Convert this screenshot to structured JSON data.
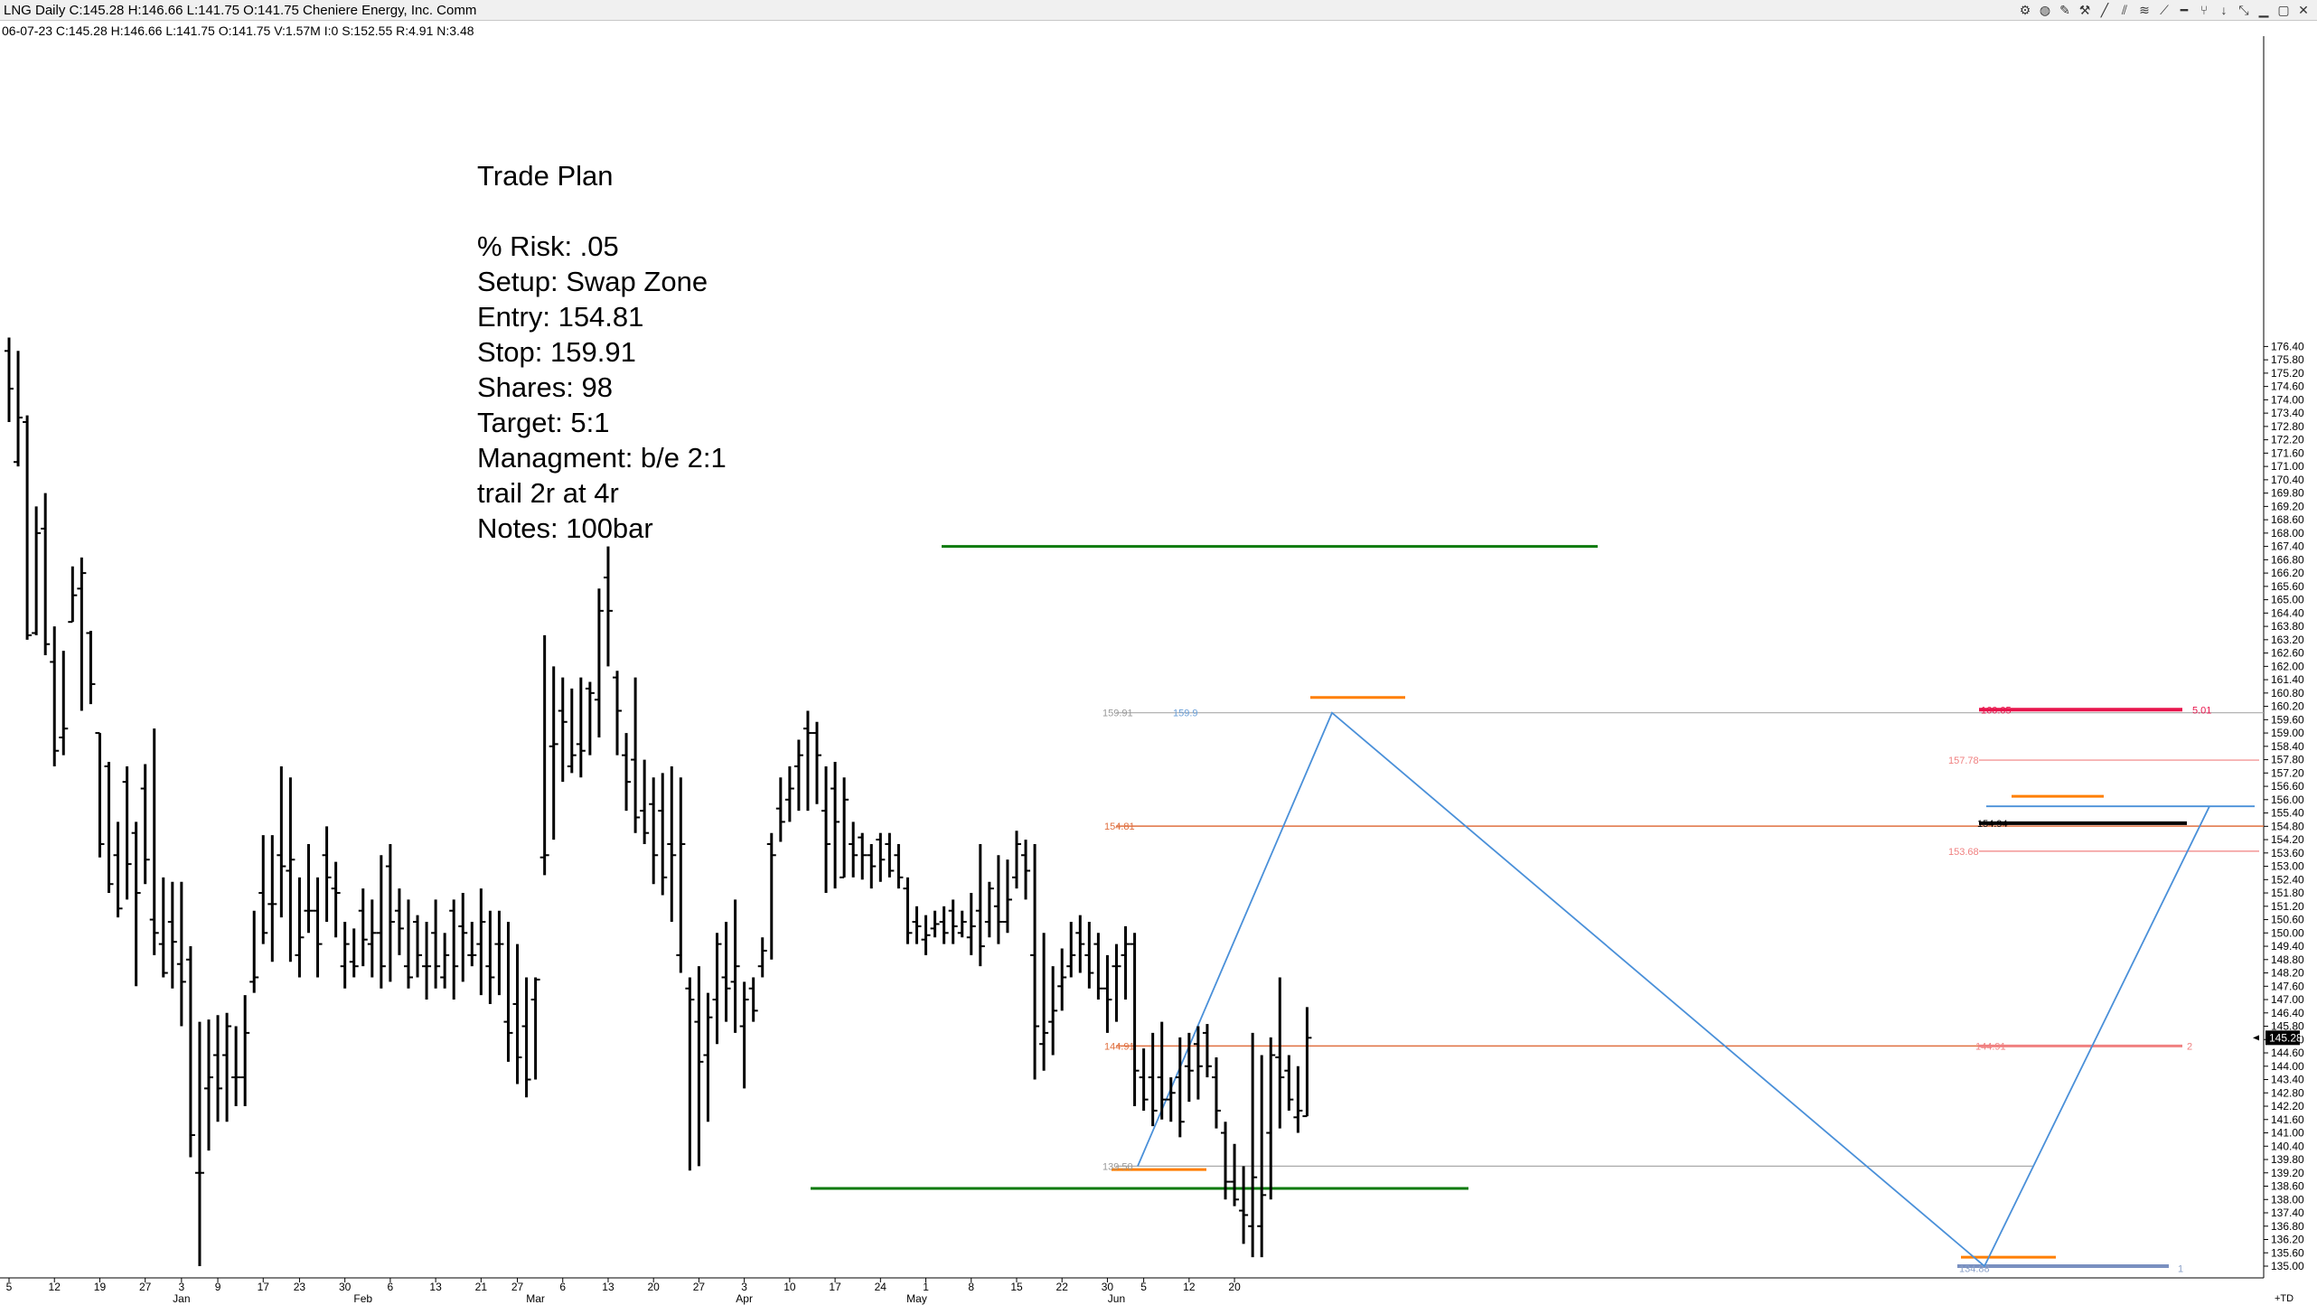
{
  "window": {
    "title": "LNG Daily C:145.28 H:146.66 L:141.75 O:141.75 Cheniere Energy, Inc. Comm",
    "toolbar_icons": [
      "gear-icon",
      "color-icon",
      "pencil-icon",
      "wrench-icon",
      "line-icon",
      "channel-icon",
      "fib-icon",
      "trend-icon",
      "hline-icon",
      "fork-icon",
      "down-arrow-icon",
      "resize-icon",
      "minimize-icon",
      "maximize-icon",
      "close-icon"
    ]
  },
  "quote_line": "06-07-23 C:145.28 H:146.66 L:141.75 O:141.75 V:1.57M I:0 S:152.55 R:4.91 N:3.48",
  "trade_plan": {
    "title": "Trade Plan",
    "lines": [
      "% Risk: .05",
      "Setup: Swap Zone",
      "Entry: 154.81",
      "Stop: 159.91",
      "Shares: 98",
      "Target: 5:1",
      "Managment: b/e 2:1",
      "trail 2r at 4r",
      "Notes: 100bar"
    ]
  },
  "chart_data": {
    "type": "ohlc",
    "symbol": "LNG",
    "interval": "Daily",
    "colors": {
      "bars": "#000000",
      "entry": "#e07040",
      "stop": "#888888",
      "green": "#0a7a0a",
      "orange": "#ff7f00",
      "blue": "#4a90d9",
      "target": "#e8144c",
      "partial": "#f08080"
    },
    "ylim": [
      135,
      176.4
    ],
    "y_ticks": [
      135.0,
      135.6,
      136.2,
      136.8,
      137.4,
      138.0,
      138.6,
      139.2,
      139.8,
      140.4,
      141.0,
      141.6,
      142.2,
      142.8,
      143.4,
      144.0,
      144.6,
      145.2,
      145.8,
      146.4,
      147.0,
      147.6,
      148.2,
      148.8,
      149.4,
      150.0,
      150.6,
      151.2,
      151.8,
      152.4,
      153.0,
      153.6,
      154.2,
      154.8,
      155.4,
      156.0,
      156.6,
      157.2,
      157.8,
      158.4,
      159.0,
      159.6,
      160.2,
      160.8,
      161.4,
      162.0,
      162.6,
      163.2,
      163.8,
      164.4,
      165.0,
      165.6,
      166.2,
      166.8,
      167.4,
      168.0,
      168.6,
      169.2,
      169.8,
      170.4,
      171.0,
      171.6,
      172.2,
      172.8,
      173.4,
      174.0,
      174.6,
      175.2,
      175.8,
      176.4
    ],
    "x_ticks": [
      {
        "label": "5",
        "i": 0
      },
      {
        "label": "12",
        "i": 5
      },
      {
        "label": "19",
        "i": 10
      },
      {
        "label": "27",
        "i": 15
      },
      {
        "label": "3",
        "i": 19
      },
      {
        "label": "9",
        "i": 23
      },
      {
        "label": "17",
        "i": 28
      },
      {
        "label": "23",
        "i": 32
      },
      {
        "label": "30",
        "i": 37
      },
      {
        "label": "6",
        "i": 42
      },
      {
        "label": "13",
        "i": 47
      },
      {
        "label": "21",
        "i": 52
      },
      {
        "label": "27",
        "i": 56
      },
      {
        "label": "6",
        "i": 61
      },
      {
        "label": "13",
        "i": 66
      },
      {
        "label": "20",
        "i": 71
      },
      {
        "label": "27",
        "i": 76
      },
      {
        "label": "3",
        "i": 81
      },
      {
        "label": "10",
        "i": 86
      },
      {
        "label": "17",
        "i": 91
      },
      {
        "label": "24",
        "i": 96
      },
      {
        "label": "1",
        "i": 101
      },
      {
        "label": "8",
        "i": 106
      },
      {
        "label": "15",
        "i": 111
      },
      {
        "label": "22",
        "i": 116
      },
      {
        "label": "30",
        "i": 121
      },
      {
        "label": "5",
        "i": 125
      },
      {
        "label": "12",
        "i": 130
      },
      {
        "label": "20",
        "i": 135
      }
    ],
    "month_labels": [
      {
        "label": "Jan",
        "i": 19
      },
      {
        "label": "Feb",
        "i": 39
      },
      {
        "label": "Mar",
        "i": 58
      },
      {
        "label": "Apr",
        "i": 81
      },
      {
        "label": "May",
        "i": 100
      },
      {
        "label": "Jun",
        "i": 122
      }
    ],
    "corner_label": "+TD",
    "last_price": 145.28,
    "bars": [
      [
        176.2,
        176.8,
        173.0,
        174.5
      ],
      [
        171.2,
        176.2,
        171.0,
        173.2
      ],
      [
        173.0,
        173.3,
        163.2,
        163.4
      ],
      [
        163.5,
        169.2,
        163.4,
        168.0
      ],
      [
        168.2,
        169.8,
        162.5,
        163.0
      ],
      [
        162.2,
        163.8,
        157.5,
        158.2
      ],
      [
        158.8,
        162.7,
        158.0,
        159.2
      ],
      [
        164.0,
        166.5,
        164.0,
        165.2
      ],
      [
        165.5,
        166.9,
        160.0,
        166.2
      ],
      [
        163.5,
        163.6,
        160.3,
        161.2
      ],
      [
        159.0,
        159.0,
        153.4,
        154.0
      ],
      [
        157.5,
        157.7,
        151.8,
        152.2
      ],
      [
        153.5,
        155.0,
        150.7,
        151.1
      ],
      [
        156.8,
        157.5,
        151.5,
        153.1
      ],
      [
        154.5,
        155.0,
        147.6,
        151.8
      ],
      [
        156.5,
        157.6,
        152.2,
        153.3
      ],
      [
        150.6,
        159.2,
        149.0,
        150.0
      ],
      [
        149.5,
        152.5,
        148.0,
        148.2
      ],
      [
        150.5,
        152.3,
        147.5,
        149.6
      ],
      [
        148.6,
        152.3,
        145.8,
        147.8
      ],
      [
        148.8,
        149.4,
        139.9,
        140.9
      ],
      [
        139.2,
        146.0,
        135.0,
        139.2
      ],
      [
        143.0,
        146.1,
        140.2,
        143.5
      ],
      [
        144.5,
        146.3,
        141.5,
        143.0
      ],
      [
        144.5,
        146.4,
        141.5,
        145.8
      ],
      [
        143.5,
        145.8,
        142.2,
        143.5
      ],
      [
        143.5,
        147.2,
        142.2,
        145.5
      ],
      [
        147.8,
        151.0,
        147.3,
        148.0
      ],
      [
        151.8,
        154.4,
        149.5,
        150.0
      ],
      [
        151.3,
        154.4,
        148.7,
        151.3
      ],
      [
        153.5,
        157.5,
        150.7,
        153.0
      ],
      [
        152.8,
        157.0,
        148.7,
        153.3
      ],
      [
        149.0,
        152.5,
        148.0,
        149.8
      ],
      [
        151.0,
        154.0,
        150.0,
        151.0
      ],
      [
        151.0,
        152.5,
        148.0,
        149.5
      ],
      [
        153.5,
        154.8,
        150.5,
        152.5
      ],
      [
        152.0,
        153.2,
        149.8,
        151.8
      ],
      [
        148.5,
        150.5,
        147.5,
        149.5
      ],
      [
        148.7,
        150.2,
        148.0,
        148.5
      ],
      [
        151.0,
        152.0,
        148.5,
        149.7
      ],
      [
        149.5,
        151.5,
        148.0,
        150.0
      ],
      [
        150.0,
        153.5,
        147.5,
        148.5
      ],
      [
        153.0,
        154.0,
        147.8,
        150.5
      ],
      [
        151.0,
        152.0,
        149.0,
        150.2
      ],
      [
        148.5,
        151.5,
        147.5,
        148.0
      ],
      [
        150.5,
        150.8,
        148.0,
        149.0
      ],
      [
        148.5,
        150.5,
        147.0,
        148.5
      ],
      [
        150.0,
        151.5,
        147.5,
        148.5
      ],
      [
        148.0,
        150.0,
        147.5,
        149.0
      ],
      [
        151.0,
        151.5,
        147.0,
        148.5
      ],
      [
        150.3,
        151.8,
        147.8,
        150.0
      ],
      [
        149.0,
        150.5,
        148.5,
        149.0
      ],
      [
        149.5,
        152.0,
        147.2,
        150.5
      ],
      [
        148.5,
        151.0,
        146.8,
        148.0
      ],
      [
        149.5,
        151.0,
        147.2,
        149.5
      ],
      [
        146.0,
        150.5,
        144.2,
        145.5
      ],
      [
        146.8,
        149.5,
        143.2,
        144.4
      ],
      [
        145.8,
        148.0,
        142.6,
        143.4
      ],
      [
        147.0,
        148.0,
        143.4,
        147.9
      ],
      [
        153.4,
        163.4,
        152.6,
        153.5
      ],
      [
        158.4,
        162.0,
        154.2,
        158.5
      ],
      [
        160.0,
        161.5,
        156.8,
        159.5
      ],
      [
        157.5,
        161.0,
        157.2,
        158.0
      ],
      [
        158.5,
        161.5,
        157.0,
        158.2
      ],
      [
        161.0,
        161.3,
        158.0,
        160.8
      ],
      [
        160.5,
        165.5,
        158.8,
        164.5
      ],
      [
        166.0,
        167.4,
        162.0,
        164.5
      ],
      [
        161.5,
        161.8,
        158.0,
        160.0
      ],
      [
        158.0,
        159.0,
        155.5,
        156.8
      ],
      [
        157.8,
        161.5,
        154.5,
        155.2
      ],
      [
        155.5,
        157.8,
        154.0,
        154.5
      ],
      [
        155.8,
        157.0,
        152.2,
        153.5
      ],
      [
        155.5,
        157.2,
        151.7,
        152.5
      ],
      [
        154.0,
        157.5,
        150.5,
        153.5
      ],
      [
        149.0,
        157.0,
        148.2,
        154.0
      ],
      [
        147.5,
        148.0,
        139.3,
        147.0
      ],
      [
        146.0,
        148.5,
        139.5,
        144.2
      ],
      [
        144.5,
        147.3,
        141.5,
        146.2
      ],
      [
        147.0,
        150.0,
        145.0,
        149.5
      ],
      [
        148.0,
        150.5,
        146.0,
        147.5
      ],
      [
        147.8,
        151.5,
        145.5,
        148.5
      ],
      [
        145.8,
        147.8,
        143.0,
        147.0
      ],
      [
        147.5,
        148.0,
        146.0,
        146.5
      ],
      [
        148.5,
        149.8,
        148.0,
        149.2
      ],
      [
        154.0,
        154.5,
        148.8,
        153.5
      ],
      [
        155.6,
        157.0,
        154.1,
        155.0
      ],
      [
        156.0,
        157.5,
        155.0,
        156.5
      ],
      [
        157.5,
        158.7,
        155.5,
        158.0
      ],
      [
        159.2,
        160.0,
        155.5,
        159.0
      ],
      [
        159.0,
        159.5,
        155.8,
        158.0
      ],
      [
        155.5,
        157.5,
        151.8,
        154.0
      ],
      [
        156.5,
        157.7,
        152.0,
        155.0
      ],
      [
        152.5,
        157.0,
        152.5,
        156.0
      ],
      [
        154.0,
        155.0,
        152.5,
        153.5
      ],
      [
        154.3,
        154.5,
        152.4,
        153.5
      ],
      [
        153.5,
        154.0,
        152.0,
        153.0
      ],
      [
        154.2,
        154.5,
        152.3,
        153.3
      ],
      [
        154.0,
        154.5,
        152.5,
        152.8
      ],
      [
        153.5,
        154.0,
        152.0,
        152.5
      ],
      [
        152.0,
        152.5,
        149.5,
        150.0
      ],
      [
        150.5,
        151.2,
        149.5,
        150.3
      ],
      [
        149.7,
        150.8,
        149.0,
        149.9
      ],
      [
        150.2,
        151.0,
        149.8,
        150.4
      ],
      [
        150.5,
        151.2,
        149.5,
        150.0
      ],
      [
        151.0,
        151.5,
        149.5,
        150.3
      ],
      [
        150.0,
        151.0,
        149.8,
        150.5
      ],
      [
        149.8,
        151.8,
        149.0,
        150.3
      ],
      [
        151.0,
        154.0,
        148.5,
        149.4
      ],
      [
        150.5,
        152.3,
        149.8,
        152.0
      ],
      [
        151.2,
        153.5,
        149.5,
        150.5
      ],
      [
        150.5,
        153.3,
        150.0,
        151.5
      ],
      [
        152.5,
        154.6,
        152.0,
        154.0
      ],
      [
        153.5,
        154.2,
        151.5,
        152.8
      ],
      [
        149.0,
        154.0,
        143.4,
        145.8
      ],
      [
        145.0,
        150.0,
        143.8,
        145.5
      ],
      [
        146.0,
        148.5,
        144.5,
        146.5
      ],
      [
        147.6,
        149.3,
        146.5,
        148.0
      ],
      [
        148.5,
        150.5,
        148.0,
        149.0
      ],
      [
        150.0,
        150.8,
        148.2,
        149.5
      ],
      [
        149.0,
        150.5,
        147.5,
        148.2
      ],
      [
        149.5,
        150.0,
        147.0,
        147.5
      ],
      [
        147.5,
        149.0,
        145.5,
        147.0
      ],
      [
        148.5,
        149.5,
        146.0,
        148.5
      ],
      [
        149.0,
        150.3,
        147.0,
        149.5
      ],
      [
        149.5,
        150.0,
        142.2,
        143.8
      ],
      [
        143.5,
        144.8,
        142.0,
        142.5
      ],
      [
        143.5,
        145.5,
        141.3,
        142.0
      ],
      [
        143.5,
        146.0,
        141.6,
        142.5
      ],
      [
        142.5,
        143.5,
        141.5,
        142.8
      ],
      [
        143.5,
        145.3,
        140.8,
        141.5
      ],
      [
        144.0,
        145.5,
        142.4,
        143.8
      ],
      [
        145.0,
        145.8,
        142.5,
        144.0
      ],
      [
        145.5,
        145.9,
        143.5,
        144.0
      ],
      [
        143.5,
        144.4,
        141.2,
        142.0
      ],
      [
        141.0,
        141.5,
        138.0,
        138.8
      ],
      [
        138.8,
        140.5,
        137.7,
        138.0
      ],
      [
        137.5,
        139.5,
        136.0,
        137.3
      ],
      [
        136.8,
        145.5,
        135.4,
        139.0
      ],
      [
        136.8,
        144.5,
        135.4,
        138.2
      ],
      [
        141.0,
        145.3,
        138.0,
        144.5
      ],
      [
        144.4,
        148.0,
        141.2,
        143.5
      ],
      [
        143.8,
        144.5,
        142.0,
        142.5
      ],
      [
        141.7,
        144.0,
        141.0,
        142.0
      ],
      [
        141.75,
        146.66,
        141.75,
        145.28
      ]
    ],
    "levels": [
      {
        "name": "stop",
        "price": 159.91,
        "label": "159.91",
        "color": "#999999"
      },
      {
        "name": "entry",
        "price": 154.81,
        "label": "154.81",
        "color": "#e07040"
      },
      {
        "name": "low-pivot",
        "price": 139.5,
        "label": "139.50",
        "color": "#999999"
      },
      {
        "name": "half",
        "price": 144.91,
        "label": "144.91",
        "color": "#f08080"
      },
      {
        "name": "target",
        "price": 160.05,
        "label": "160.05",
        "color": "#e8144c"
      },
      {
        "name": "r3",
        "price": 157.78,
        "label": "157.78",
        "color": "#f08080"
      },
      {
        "name": "r1",
        "price": 153.68,
        "label": "153.68",
        "color": "#f08080"
      },
      {
        "name": "entry-marker",
        "price": 154.94,
        "label": "154.94",
        "color": "#000000"
      }
    ],
    "level_right_labels": [
      {
        "text": "5.01",
        "price": 160.05
      },
      {
        "text": "2",
        "price": 144.91
      },
      {
        "text": "1",
        "price": 135.0
      }
    ],
    "level_left_labels": [
      {
        "text": "159.91",
        "price": 159.91
      },
      {
        "text": "159.9",
        "price": 159.91
      },
      {
        "text": "154.81",
        "price": 154.81
      },
      {
        "text": "144.91",
        "price": 144.91
      },
      {
        "text": "139.50",
        "price": 139.5
      },
      {
        "text": "134.88",
        "price": 135.0
      }
    ]
  }
}
